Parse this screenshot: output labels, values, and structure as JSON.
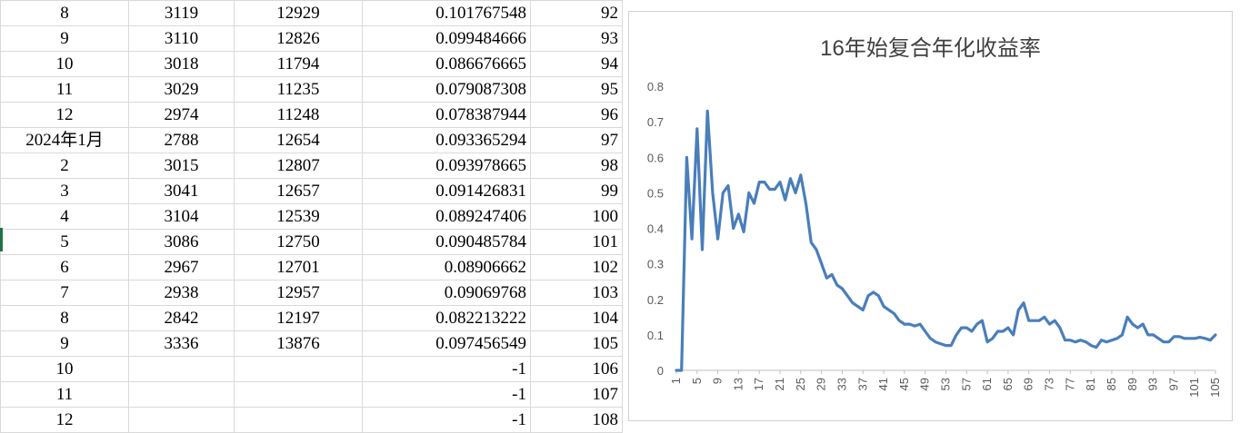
{
  "sheet": {
    "rows": [
      [
        "8",
        "3119",
        "12929",
        "0.101767548",
        "92"
      ],
      [
        "9",
        "3110",
        "12826",
        "0.099484666",
        "93"
      ],
      [
        "10",
        "3018",
        "11794",
        "0.086676665",
        "94"
      ],
      [
        "11",
        "3029",
        "11235",
        "0.079087308",
        "95"
      ],
      [
        "12",
        "2974",
        "11248",
        "0.078387944",
        "96"
      ],
      [
        "2024年1月",
        "2788",
        "12654",
        "0.093365294",
        "97"
      ],
      [
        "2",
        "3015",
        "12807",
        "0.093978665",
        "98"
      ],
      [
        "3",
        "3041",
        "12657",
        "0.091426831",
        "99"
      ],
      [
        "4",
        "3104",
        "12539",
        "0.089247406",
        "100"
      ],
      [
        "5",
        "3086",
        "12750",
        "0.090485784",
        "101"
      ],
      [
        "6",
        "2967",
        "12701",
        "0.08906662",
        "102"
      ],
      [
        "7",
        "2938",
        "12957",
        "0.09069768",
        "103"
      ],
      [
        "8",
        "2842",
        "12197",
        "0.082213222",
        "104"
      ],
      [
        "9",
        "3336",
        "13876",
        "0.097456549",
        "105"
      ],
      [
        "10",
        "",
        "",
        "-1",
        "106"
      ],
      [
        "11",
        "",
        "",
        "-1",
        "107"
      ],
      [
        "12",
        "",
        "",
        "-1",
        "108"
      ]
    ]
  },
  "chart_data": {
    "type": "line",
    "title": "16年始复合年化收益率",
    "xlabel": "",
    "ylabel": "",
    "ylim": [
      0,
      0.8
    ],
    "yticks": [
      "0",
      "0.1",
      "0.2",
      "0.3",
      "0.4",
      "0.5",
      "0.6",
      "0.7",
      "0.8"
    ],
    "xticks": [
      "1",
      "5",
      "9",
      "13",
      "17",
      "21",
      "25",
      "29",
      "33",
      "37",
      "41",
      "45",
      "49",
      "53",
      "57",
      "61",
      "65",
      "69",
      "73",
      "77",
      "81",
      "85",
      "89",
      "93",
      "97",
      "101",
      "105"
    ],
    "grid": false,
    "legend": "none",
    "line_color": "#4a7ebb",
    "x": [
      1,
      2,
      3,
      4,
      5,
      6,
      7,
      8,
      9,
      10,
      11,
      12,
      13,
      14,
      15,
      16,
      17,
      18,
      19,
      20,
      21,
      22,
      23,
      24,
      25,
      26,
      27,
      28,
      29,
      30,
      31,
      32,
      33,
      34,
      35,
      36,
      37,
      38,
      39,
      40,
      41,
      42,
      43,
      44,
      45,
      46,
      47,
      48,
      49,
      50,
      51,
      52,
      53,
      54,
      55,
      56,
      57,
      58,
      59,
      60,
      61,
      62,
      63,
      64,
      65,
      66,
      67,
      68,
      69,
      70,
      71,
      72,
      73,
      74,
      75,
      76,
      77,
      78,
      79,
      80,
      81,
      82,
      83,
      84,
      85,
      86,
      87,
      88,
      89,
      90,
      91,
      92,
      93,
      94,
      95,
      96,
      97,
      98,
      99,
      100,
      101,
      102,
      103,
      104,
      105
    ],
    "values": [
      0,
      0,
      0.6,
      0.37,
      0.68,
      0.34,
      0.73,
      0.5,
      0.37,
      0.5,
      0.52,
      0.4,
      0.44,
      0.39,
      0.5,
      0.47,
      0.53,
      0.53,
      0.51,
      0.51,
      0.53,
      0.48,
      0.54,
      0.5,
      0.55,
      0.47,
      0.36,
      0.34,
      0.3,
      0.26,
      0.27,
      0.24,
      0.23,
      0.21,
      0.19,
      0.18,
      0.17,
      0.21,
      0.22,
      0.21,
      0.18,
      0.17,
      0.16,
      0.14,
      0.13,
      0.13,
      0.125,
      0.13,
      0.11,
      0.09,
      0.08,
      0.075,
      0.07,
      0.07,
      0.1,
      0.12,
      0.12,
      0.11,
      0.13,
      0.14,
      0.08,
      0.09,
      0.11,
      0.11,
      0.12,
      0.1,
      0.17,
      0.19,
      0.14,
      0.14,
      0.14,
      0.15,
      0.13,
      0.14,
      0.12,
      0.085,
      0.085,
      0.08,
      0.085,
      0.08,
      0.07,
      0.065,
      0.085,
      0.08,
      0.085,
      0.09,
      0.1,
      0.15,
      0.13,
      0.12,
      0.13,
      0.1,
      0.1,
      0.09,
      0.08,
      0.08,
      0.095,
      0.095,
      0.09,
      0.09,
      0.09,
      0.093,
      0.09,
      0.085,
      0.1
    ]
  }
}
